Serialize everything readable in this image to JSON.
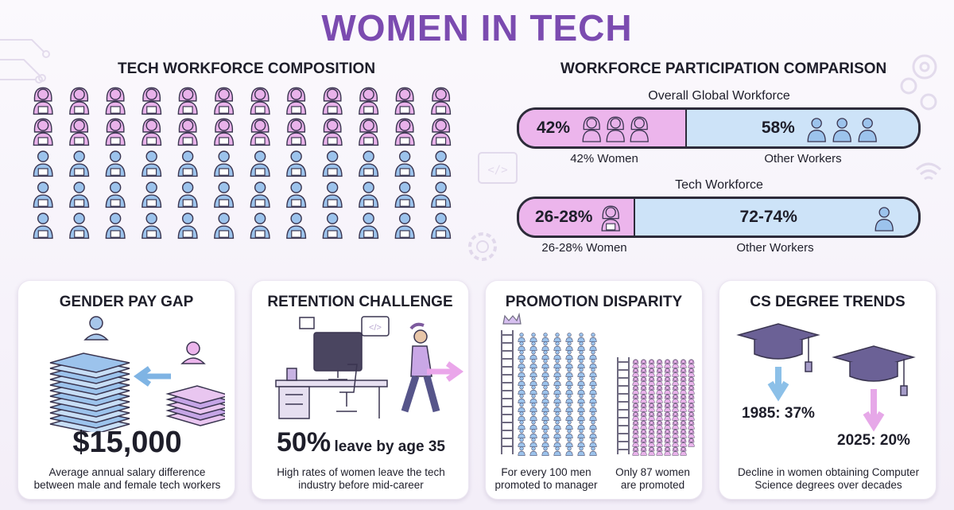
{
  "title": "WOMEN IN TECH",
  "composition": {
    "heading": "TECH WORKFORCE COMPOSITION",
    "rows": 5,
    "cols": 12,
    "women_count": 24,
    "colors": {
      "women": "#e9b2ea",
      "men": "#9cc3ec",
      "outline": "#3a3550"
    }
  },
  "comparison": {
    "heading": "WORKFORCE PARTICIPATION COMPARISON",
    "global": {
      "label": "Overall Global Workforce",
      "women_pct": "42%",
      "women_share": 0.42,
      "other_pct": "58%",
      "women_caption": "42% Women",
      "other_caption": "Other Workers"
    },
    "tech": {
      "label": "Tech Workforce",
      "women_pct": "26-28%",
      "women_share": 0.27,
      "other_pct": "72-74%",
      "women_caption": "26-28% Women",
      "other_caption": "Other Workers"
    }
  },
  "cards": {
    "pay_gap": {
      "title": "GENDER PAY GAP",
      "value": "$15,000",
      "description_1": "Average annual salary difference",
      "description_2": "between male and female tech workers"
    },
    "retention": {
      "title": "RETENTION CHALLENGE",
      "value": "50%",
      "value_suffix": "leave by age 35",
      "description_1": "High rates of women leave the tech",
      "description_2": "industry before mid-career"
    },
    "promotion": {
      "title": "PROMOTION DISPARITY",
      "men_caption_1": "For every 100 men",
      "men_caption_2": "promoted to manager",
      "women_caption_1": "Only 87 women",
      "women_caption_2": "are promoted",
      "men_promoted": 100,
      "women_promoted": 87
    },
    "degrees": {
      "title": "CS DEGREE TRENDS",
      "label_1985": "1985: 37%",
      "label_2025": "2025: 20%",
      "description_1": "Decline in women obtaining Computer",
      "description_2": "Science degrees over decades"
    }
  },
  "icons": {
    "woman": "woman-laptop-icon",
    "man": "man-laptop-icon",
    "money": "money-stack-icon",
    "grad_cap": "graduation-cap-icon",
    "ladder": "ladder-icon",
    "crown": "crown-icon"
  }
}
